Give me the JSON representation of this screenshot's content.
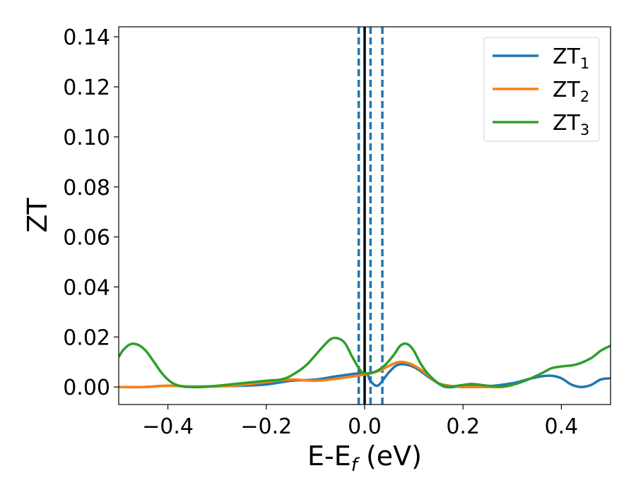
{
  "chart_data": {
    "type": "line",
    "title": "",
    "xlabel": "E-E",
    "xlabel_sub": "f",
    "xlabel_unit": " (eV)",
    "ylabel": "ZT",
    "xlim": [
      -0.5,
      0.5
    ],
    "ylim": [
      -0.007,
      0.144
    ],
    "xticks": [
      -0.4,
      -0.2,
      0.0,
      0.2,
      0.4
    ],
    "xtick_labels": [
      "−0.4",
      "−0.2",
      "0.0",
      "0.2",
      "0.4"
    ],
    "yticks": [
      0.0,
      0.02,
      0.04,
      0.06,
      0.08,
      0.1,
      0.12,
      0.14
    ],
    "ytick_labels": [
      "0.00",
      "0.02",
      "0.04",
      "0.06",
      "0.08",
      "0.10",
      "0.12",
      "0.14"
    ],
    "grid": false,
    "legend_position": "top-right",
    "vlines": [
      {
        "x": 0.0,
        "style": "solid",
        "color": "#000000"
      },
      {
        "x": -0.012,
        "style": "dashed",
        "color": "#1f77b4"
      },
      {
        "x": 0.012,
        "style": "dashed",
        "color": "#1f77b4"
      },
      {
        "x": 0.036,
        "style": "dashed",
        "color": "#1f77b4"
      }
    ],
    "series": [
      {
        "name": "ZT",
        "sub": "1",
        "color": "#1f77b4",
        "x": [
          -0.5,
          -0.45,
          -0.4,
          -0.35,
          -0.3,
          -0.25,
          -0.2,
          -0.15,
          -0.1,
          -0.05,
          0.0,
          0.01,
          0.02,
          0.03,
          0.05,
          0.07,
          0.1,
          0.13,
          0.16,
          0.18,
          0.2,
          0.25,
          0.3,
          0.33,
          0.36,
          0.38,
          0.4,
          0.42,
          0.44,
          0.46,
          0.48,
          0.5
        ],
        "y": [
          0.0,
          0.0,
          0.0005,
          0.0002,
          0.0003,
          0.0005,
          0.001,
          0.0025,
          0.003,
          0.0045,
          0.0055,
          0.003,
          0.0008,
          0.001,
          0.006,
          0.009,
          0.008,
          0.004,
          0.0003,
          0.0,
          0.0003,
          0.0003,
          0.0015,
          0.003,
          0.0043,
          0.0045,
          0.0035,
          0.001,
          0.0,
          0.0008,
          0.003,
          0.0035
        ]
      },
      {
        "name": "ZT",
        "sub": "2",
        "color": "#ff7f0e",
        "x": [
          -0.5,
          -0.45,
          -0.4,
          -0.35,
          -0.3,
          -0.25,
          -0.2,
          -0.15,
          -0.1,
          -0.05,
          0.0,
          0.03,
          0.05,
          0.07,
          0.09,
          0.11,
          0.13,
          0.15,
          0.18,
          0.2,
          0.25,
          0.28,
          0.3
        ],
        "y": [
          0.0,
          0.0,
          0.0005,
          0.0002,
          0.0002,
          0.0008,
          0.002,
          0.003,
          0.0025,
          0.0035,
          0.005,
          0.0065,
          0.0085,
          0.01,
          0.0095,
          0.0075,
          0.0045,
          0.0015,
          0.0003,
          0.0,
          0.0,
          0.0,
          0.0008
        ]
      },
      {
        "name": "ZT",
        "sub": "3",
        "color": "#2ca02c",
        "x": [
          -0.5,
          -0.49,
          -0.475,
          -0.46,
          -0.445,
          -0.43,
          -0.41,
          -0.39,
          -0.37,
          -0.35,
          -0.33,
          -0.3,
          -0.25,
          -0.2,
          -0.17,
          -0.15,
          -0.12,
          -0.09,
          -0.07,
          -0.055,
          -0.04,
          -0.025,
          -0.01,
          0.0,
          0.02,
          0.04,
          0.06,
          0.07,
          0.08,
          0.09,
          0.1,
          0.115,
          0.13,
          0.15,
          0.17,
          0.2,
          0.22,
          0.25,
          0.28,
          0.3,
          0.33,
          0.36,
          0.38,
          0.4,
          0.43,
          0.46,
          0.48,
          0.5
        ],
        "y": [
          0.012,
          0.015,
          0.0172,
          0.0168,
          0.0145,
          0.0105,
          0.005,
          0.0015,
          0.0002,
          0.0,
          0.0,
          0.0005,
          0.0015,
          0.0025,
          0.003,
          0.0045,
          0.0085,
          0.015,
          0.019,
          0.0195,
          0.0175,
          0.012,
          0.007,
          0.0055,
          0.006,
          0.0085,
          0.013,
          0.016,
          0.0173,
          0.0168,
          0.0145,
          0.009,
          0.005,
          0.0015,
          0.0002,
          0.0008,
          0.0012,
          0.0005,
          0.0002,
          0.0008,
          0.0028,
          0.0055,
          0.0075,
          0.0082,
          0.009,
          0.0115,
          0.0145,
          0.0165
        ]
      }
    ]
  }
}
